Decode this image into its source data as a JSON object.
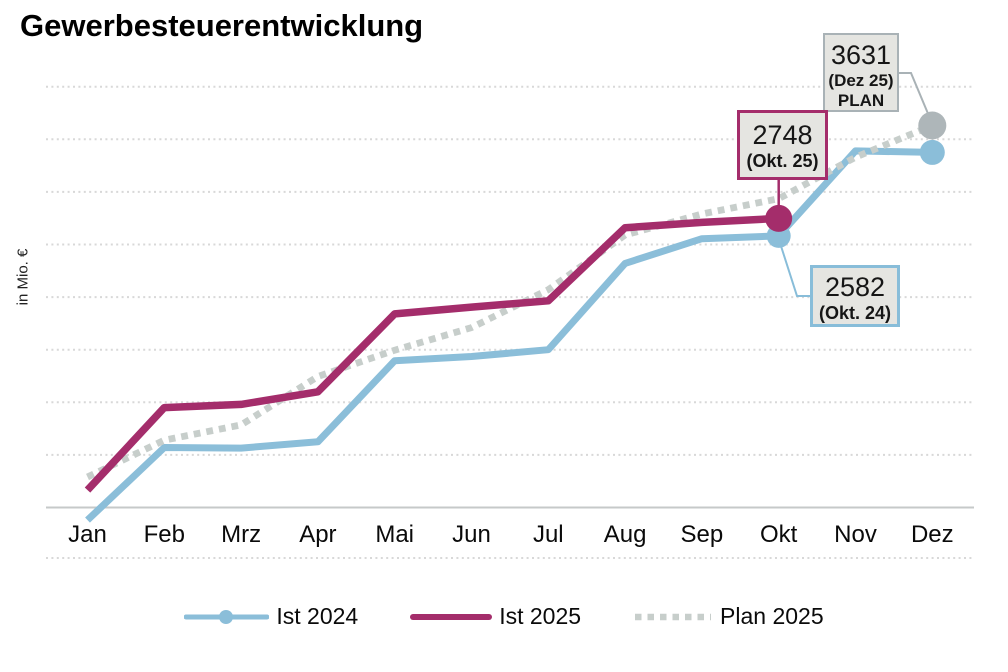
{
  "title": "Gewerbesteuerentwicklung",
  "ylabel": "in Mio. €",
  "chart_data": {
    "type": "line",
    "title": "Gewerbesteuerentwicklung",
    "xlabel": "",
    "ylabel": "in Mio. €",
    "categories": [
      "Jan",
      "Feb",
      "Mrz",
      "Apr",
      "Mai",
      "Jun",
      "Jul",
      "Aug",
      "Sep",
      "Okt",
      "Nov",
      "Dez"
    ],
    "ylim": [
      0,
      4000
    ],
    "grid_step": 500,
    "grid": true,
    "legend_position": "bottom",
    "colors": {
      "ist2024": "#8bbed9",
      "ist2025": "#a42d6b",
      "plan2025": "#c7cecb",
      "plan_marker": "#aeb6b9",
      "gridline": "#d8d8d8",
      "axis_line": "#c6c9c9",
      "callout_fill": "#e5e5e1",
      "callout_border_plan": "#a9b2b6"
    },
    "series": [
      {
        "name": "Ist 2024",
        "key": "ist2024",
        "color": "#8bbed9",
        "style": "solid",
        "values": [
          -120,
          570,
          565,
          625,
          1395,
          1435,
          1500,
          2320,
          2555,
          2582,
          3390,
          3375
        ]
      },
      {
        "name": "Ist 2025",
        "key": "ist2025",
        "color": "#a42d6b",
        "style": "solid",
        "values": [
          165,
          950,
          980,
          1100,
          1840,
          1905,
          1965,
          2660,
          2710,
          2748,
          null,
          null
        ]
      },
      {
        "name": "Plan 2025",
        "key": "plan2025",
        "color": "#c7cecb",
        "style": "dotted",
        "values": [
          290,
          640,
          785,
          1245,
          1495,
          1710,
          2070,
          2590,
          2790,
          2935,
          3330,
          3631
        ]
      }
    ],
    "markers": [
      {
        "series": "plan2025",
        "month_index": 11,
        "value": 3631,
        "radius": 14,
        "color": "#aeb6b9"
      },
      {
        "series": "ist2024",
        "month_index": 11,
        "value": 3375,
        "radius": 12.5,
        "color": "#8bbed9"
      },
      {
        "series": "ist2024",
        "month_index": 9,
        "value": 2582,
        "radius": 12,
        "color": "#8bbed9"
      },
      {
        "series": "ist2025",
        "month_index": 9,
        "value": 2748,
        "radius": 13.5,
        "color": "#a42d6b"
      }
    ],
    "annotations": [
      {
        "value": "3631",
        "label": "(Dez 25)",
        "sublabel": "PLAN",
        "series": "plan2025",
        "month": "Dez"
      },
      {
        "value": "2748",
        "label": "(Okt. 25)",
        "series": "ist2025",
        "month": "Okt"
      },
      {
        "value": "2582",
        "label": "(Okt. 24)",
        "series": "ist2024",
        "month": "Okt"
      }
    ]
  }
}
